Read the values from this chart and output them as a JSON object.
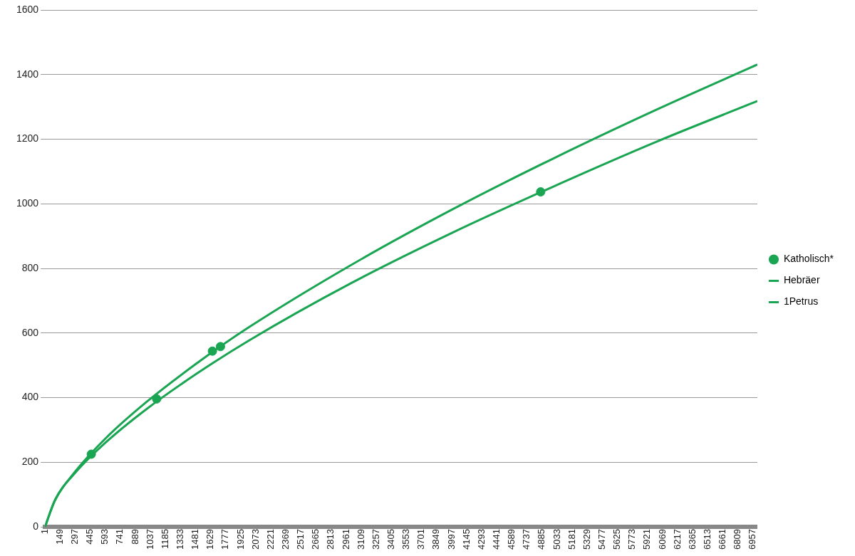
{
  "chart_data": {
    "type": "line",
    "xlim": [
      1,
      7000
    ],
    "ylim": [
      0,
      1600
    ],
    "yticks": [
      0,
      200,
      400,
      600,
      800,
      1000,
      1200,
      1400,
      1600
    ],
    "xticks": [
      1,
      149,
      297,
      445,
      593,
      741,
      889,
      1037,
      1185,
      1333,
      1481,
      1629,
      1777,
      1925,
      2073,
      2221,
      2369,
      2517,
      2665,
      2813,
      2961,
      3109,
      3257,
      3405,
      3553,
      3701,
      3849,
      3997,
      4145,
      4293,
      4441,
      4589,
      4737,
      4885,
      5033,
      5181,
      5329,
      5477,
      5625,
      5773,
      5921,
      6069,
      6217,
      6365,
      6513,
      6661,
      6809,
      6957
    ],
    "grid": "y",
    "legend": "right",
    "line_style": "solid",
    "series": [
      {
        "name": "Katholisch*",
        "type": "scatter",
        "marker": "circle",
        "color": "#1aa553",
        "x": [
          456,
          1098,
          1646,
          1725,
          4871
        ],
        "values": [
          225,
          396,
          544,
          558,
          1037
        ]
      },
      {
        "name": "Hebräer",
        "marker": "none",
        "color": "#1aa553",
        "x": [
          1,
          100,
          300,
          600,
          1000,
          1500,
          2000,
          3000,
          4000,
          5000,
          6000,
          7000
        ],
        "values": [
          0,
          82,
          172,
          275,
          387,
          508,
          617,
          809,
          982,
          1141,
          1290,
          1431
        ]
      },
      {
        "name": "1Petrus",
        "marker": "none",
        "color": "#1aa553",
        "x": [
          1,
          100,
          300,
          600,
          1000,
          1500,
          2000,
          3000,
          4000,
          5000,
          6000,
          7000
        ],
        "values": [
          0,
          84,
          168,
          262,
          365,
          476,
          576,
          753,
          910,
          1054,
          1191,
          1318
        ]
      }
    ]
  }
}
